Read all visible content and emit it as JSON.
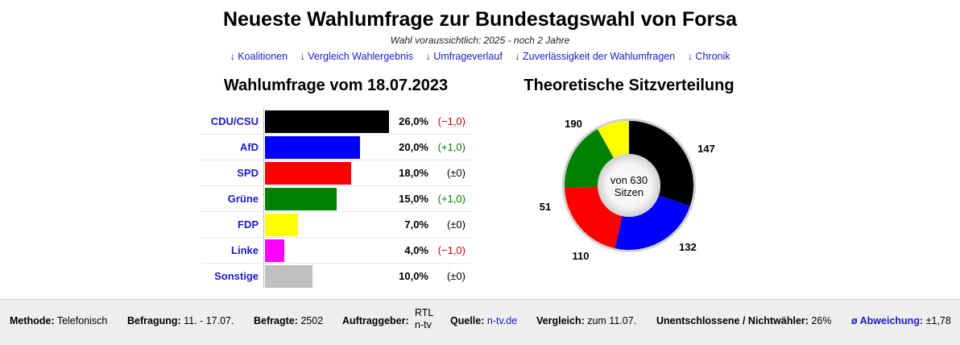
{
  "header": {
    "title": "Neueste Wahlumfrage zur Bundestagswahl von Forsa",
    "subtitle": "Wahl voraussichtlich: 2025 - noch 2 Jahre",
    "links": [
      "↓ Koalitionen",
      "↓ Vergleich Wahlergebnis",
      "↓ Umfrageverlauf",
      "↓ Zuverlässigkeit der Wahlumfragen",
      "↓ Chronik"
    ]
  },
  "chart_data": [
    {
      "type": "bar",
      "title": "Wahlumfrage vom 18.07.2023",
      "categories": [
        "CDU/CSU",
        "AfD",
        "SPD",
        "Grüne",
        "FDP",
        "Linke",
        "Sonstige"
      ],
      "values": [
        26.0,
        20.0,
        18.0,
        15.0,
        7.0,
        4.0,
        10.0
      ],
      "value_labels": [
        "26,0%",
        "20,0%",
        "18,0%",
        "15,0%",
        "7,0%",
        "4,0%",
        "10,0%"
      ],
      "changes": [
        "(−1,0)",
        "(+1,0)",
        "(±0)",
        "(+1,0)",
        "(±0)",
        "(−1,0)",
        "(±0)"
      ],
      "change_colors": [
        "#cc0000",
        "#008000",
        "#000000",
        "#008000",
        "#000000",
        "#cc0000",
        "#000000"
      ],
      "colors": [
        "#000000",
        "#0000ff",
        "#ff0000",
        "#008000",
        "#ffff00",
        "#ff00ff",
        "#c0c0c0"
      ],
      "orientation": "horizontal"
    },
    {
      "type": "pie",
      "title": "Theoretische Sitzverteilung",
      "center_label": [
        "von 630",
        "Sitzen"
      ],
      "slices": [
        {
          "label": "CDU/CSU",
          "value": 190,
          "color": "#000000"
        },
        {
          "label": "AfD",
          "value": 147,
          "color": "#0000ff"
        },
        {
          "label": "SPD",
          "value": 132,
          "color": "#ff0000"
        },
        {
          "label": "Grüne",
          "value": 110,
          "color": "#008000"
        },
        {
          "label": "FDP",
          "value": 51,
          "color": "#ffff00"
        }
      ],
      "donut": true
    }
  ],
  "footer": {
    "method_label": "Methode:",
    "method_value": "Telefonisch",
    "survey_label": "Befragung:",
    "survey_value": "11. - 17.07.",
    "respondents_label": "Befragte:",
    "respondents_value": "2502",
    "client_label": "Auftraggeber:",
    "client_value_1": "RTL",
    "client_value_2": "n-tv",
    "source_label": "Quelle:",
    "source_value": "n-tv.de",
    "compare_label": "Vergleich:",
    "compare_value": "zum 11.07.",
    "undecided_label": "Unentschlossene / Nichtwähler:",
    "undecided_value": "26%",
    "deviation_label": "ø Abweichung:",
    "deviation_value": "±1,78"
  }
}
